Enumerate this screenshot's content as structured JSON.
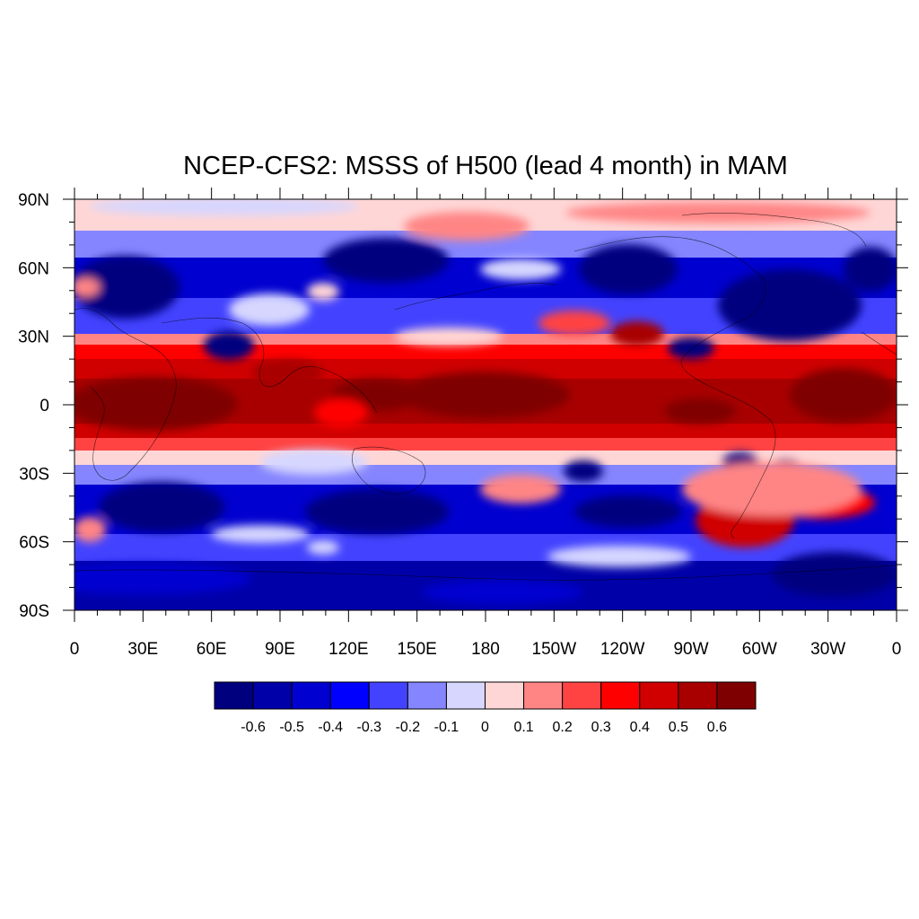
{
  "title": "NCEP-CFS2: MSSS of H500 (lead 4 month) in MAM",
  "map": {
    "lat_labels": [
      "90N",
      "60N",
      "30N",
      "0",
      "30S",
      "60S",
      "90S"
    ],
    "lon_labels": [
      "0",
      "30E",
      "60E",
      "90E",
      "120E",
      "150E",
      "180",
      "150W",
      "120W",
      "90W",
      "60W",
      "30W",
      "0"
    ],
    "lat_range": [
      -90,
      90
    ],
    "lon_range": [
      0,
      360
    ],
    "projection": "cylindrical equidistant",
    "coastlines": true
  },
  "colorbar": {
    "colors": [
      "#00007f",
      "#0000a8",
      "#0000d0",
      "#0000ff",
      "#4343ff",
      "#8585ff",
      "#d6d6ff",
      "#ffd6d6",
      "#ff8585",
      "#ff4343",
      "#ff0000",
      "#d00000",
      "#a80000",
      "#7f0000"
    ],
    "labels": [
      "-0.6",
      "-0.5",
      "-0.4",
      "-0.3",
      "-0.2",
      "-0.1",
      "0",
      "0.1",
      "0.2",
      "0.3",
      "0.4",
      "0.5",
      "0.6"
    ]
  }
}
